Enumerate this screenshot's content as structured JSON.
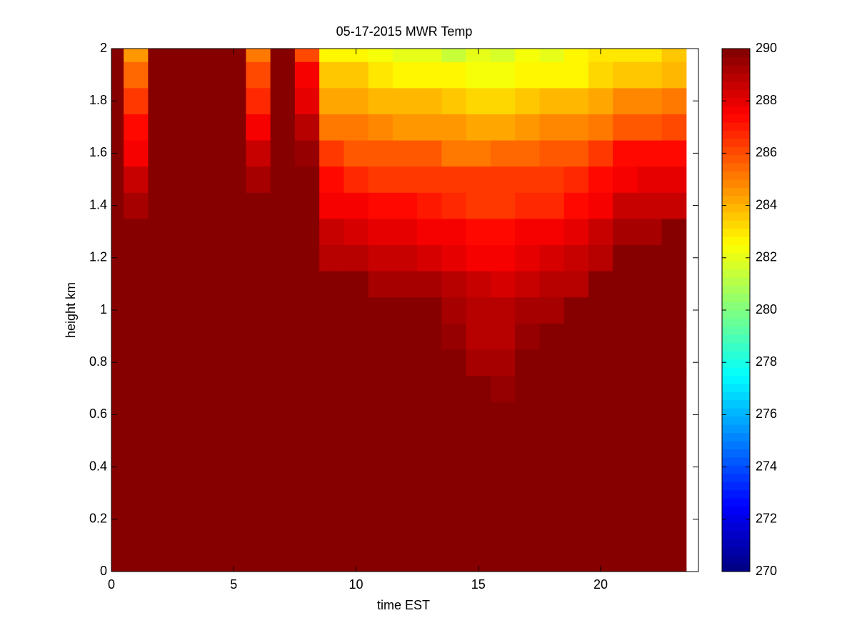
{
  "chart_data": {
    "type": "heatmap",
    "title": "05-17-2015 MWR Temp",
    "xlabel": "time EST",
    "ylabel": "height km",
    "colormap": "jet",
    "x": [
      0,
      1,
      2,
      3,
      4,
      5,
      6,
      7,
      8,
      9,
      10,
      11,
      12,
      13,
      14,
      15,
      16,
      17,
      18,
      19,
      20,
      21,
      22,
      23
    ],
    "y": [
      0,
      0.1,
      0.2,
      0.3,
      0.4,
      0.5,
      0.6,
      0.7,
      0.8,
      0.9,
      1,
      1.1,
      1.2,
      1.3,
      1.4,
      1.5,
      1.6,
      1.7,
      1.8,
      1.9,
      2
    ],
    "z": [
      [
        290,
        290,
        290,
        290,
        290,
        290,
        290,
        290,
        290,
        290,
        290,
        290,
        290,
        290,
        290,
        290,
        290,
        290,
        290,
        290,
        290,
        290,
        290,
        290
      ],
      [
        290,
        290,
        290,
        290,
        290,
        290,
        290,
        290,
        290,
        290,
        290,
        290,
        290,
        290,
        290,
        290,
        290,
        290,
        290,
        290,
        290,
        290,
        290,
        290
      ],
      [
        290,
        290,
        290,
        290,
        290,
        290,
        290,
        290,
        290,
        290,
        290,
        290,
        290,
        290,
        290,
        290,
        290,
        290,
        290,
        290,
        290,
        290,
        290,
        290
      ],
      [
        290,
        290,
        290,
        290,
        290,
        290,
        290,
        290,
        290,
        290,
        290,
        290,
        290,
        290,
        290,
        290,
        290,
        290,
        290,
        290,
        290,
        290,
        290,
        290
      ],
      [
        290,
        290,
        290,
        290,
        290,
        290,
        290,
        290,
        290,
        290,
        290,
        290,
        290,
        290,
        290,
        290,
        290,
        290,
        290,
        290,
        290,
        290,
        290,
        290
      ],
      [
        290,
        290,
        290,
        290,
        290,
        290,
        290,
        290,
        290,
        290,
        290,
        290,
        290,
        290,
        290,
        290,
        290,
        290,
        290,
        290,
        290,
        290,
        290,
        290
      ],
      [
        290,
        290,
        290,
        290,
        290,
        290,
        290,
        290,
        290,
        290,
        290,
        290,
        290,
        290,
        290,
        290,
        290,
        290,
        290,
        290,
        290,
        290,
        290,
        290
      ],
      [
        290,
        290,
        290,
        290,
        290,
        290,
        290,
        290,
        290,
        290,
        290,
        290,
        290,
        290,
        290,
        290,
        289.6,
        290,
        290,
        290,
        290,
        290,
        290,
        290
      ],
      [
        290,
        290,
        290,
        290,
        290,
        290,
        290,
        290,
        290,
        290,
        290,
        290,
        290,
        290,
        290,
        289.3,
        289.2,
        290,
        290,
        290,
        290,
        290,
        290,
        290
      ],
      [
        290,
        290,
        290,
        290,
        290,
        290,
        290,
        290,
        290,
        290,
        290,
        290,
        290,
        290,
        289.4,
        289,
        289,
        289.4,
        290,
        290,
        290,
        290,
        290,
        290
      ],
      [
        290,
        290,
        290,
        290,
        290,
        290,
        290,
        290,
        290,
        290,
        290,
        290,
        290,
        290,
        289.2,
        288.8,
        288.8,
        289.3,
        289.3,
        290,
        290,
        290,
        290,
        290
      ],
      [
        290,
        290,
        290,
        290,
        290,
        290,
        290,
        290,
        290,
        290,
        290,
        289.2,
        289.2,
        289.2,
        288.8,
        288.5,
        288.3,
        288.5,
        288.8,
        289,
        290,
        290,
        290,
        290
      ],
      [
        290,
        290,
        290,
        290,
        290,
        290,
        290,
        290,
        290,
        289,
        288.8,
        288.5,
        288.5,
        288.3,
        288,
        287.8,
        287.8,
        288,
        288.3,
        288.5,
        289,
        290,
        290,
        290
      ],
      [
        290,
        290,
        290,
        290,
        290,
        290,
        290,
        290,
        290,
        288.5,
        288.3,
        288,
        288,
        287.7,
        287.5,
        287.3,
        287.3,
        287.5,
        287.7,
        288,
        288.5,
        289.3,
        289.3,
        290
      ],
      [
        290,
        289.3,
        290,
        290,
        290,
        290,
        290,
        290,
        290,
        287.7,
        287.5,
        287.3,
        287.3,
        287,
        286.8,
        286.5,
        286.5,
        286.8,
        286.8,
        287.3,
        287.7,
        288.7,
        288.7,
        288.7
      ],
      [
        290,
        288.5,
        290,
        290,
        290,
        290,
        289.2,
        290,
        290,
        287.3,
        286.8,
        286.5,
        286.3,
        286.3,
        286.3,
        286.3,
        286.3,
        286.3,
        286.5,
        286.8,
        287.3,
        287.7,
        288,
        288
      ],
      [
        290,
        287.8,
        290,
        290,
        290,
        290,
        288.5,
        290,
        289.5,
        286.3,
        285.8,
        285.8,
        285.8,
        285.8,
        285.3,
        285,
        285.5,
        285.5,
        285.8,
        285.8,
        286.3,
        287.3,
        287.3,
        287.3
      ],
      [
        290,
        287.3,
        290,
        290,
        290,
        290,
        287.5,
        290,
        289,
        285.3,
        285.3,
        284.8,
        284.5,
        284.5,
        284.5,
        284.3,
        284.3,
        284.5,
        284.8,
        284.8,
        285.3,
        285.8,
        285.8,
        286
      ],
      [
        290,
        286.3,
        290,
        290,
        290,
        290,
        286.8,
        290,
        288,
        284.3,
        284.3,
        284,
        283.8,
        283.8,
        283.5,
        283.3,
        283.3,
        283.5,
        283.8,
        283.8,
        284.3,
        284.8,
        284.8,
        285
      ],
      [
        290,
        285.5,
        290,
        290,
        290,
        290,
        286,
        290,
        287.5,
        283.5,
        283.5,
        283,
        282.7,
        282.7,
        282.5,
        282.3,
        282.3,
        282.7,
        282.7,
        282.7,
        283.3,
        283.5,
        283.5,
        284
      ],
      [
        290,
        284.5,
        290,
        290,
        290,
        290,
        285,
        290,
        286,
        282.5,
        282.5,
        282.3,
        282,
        282,
        281.5,
        282,
        281.8,
        282.3,
        282,
        282.5,
        283,
        283,
        283,
        283.5
      ]
    ],
    "xlim": [
      0,
      24
    ],
    "xticks": [
      0,
      5,
      10,
      15,
      20
    ],
    "ylim": [
      0,
      2
    ],
    "yticks": [
      0,
      0.2,
      0.4,
      0.6,
      0.8,
      1,
      1.2,
      1.4,
      1.6,
      1.8,
      2
    ],
    "clim": [
      270,
      290
    ],
    "cticks": [
      270,
      272,
      274,
      276,
      278,
      280,
      282,
      284,
      286,
      288,
      290
    ]
  }
}
